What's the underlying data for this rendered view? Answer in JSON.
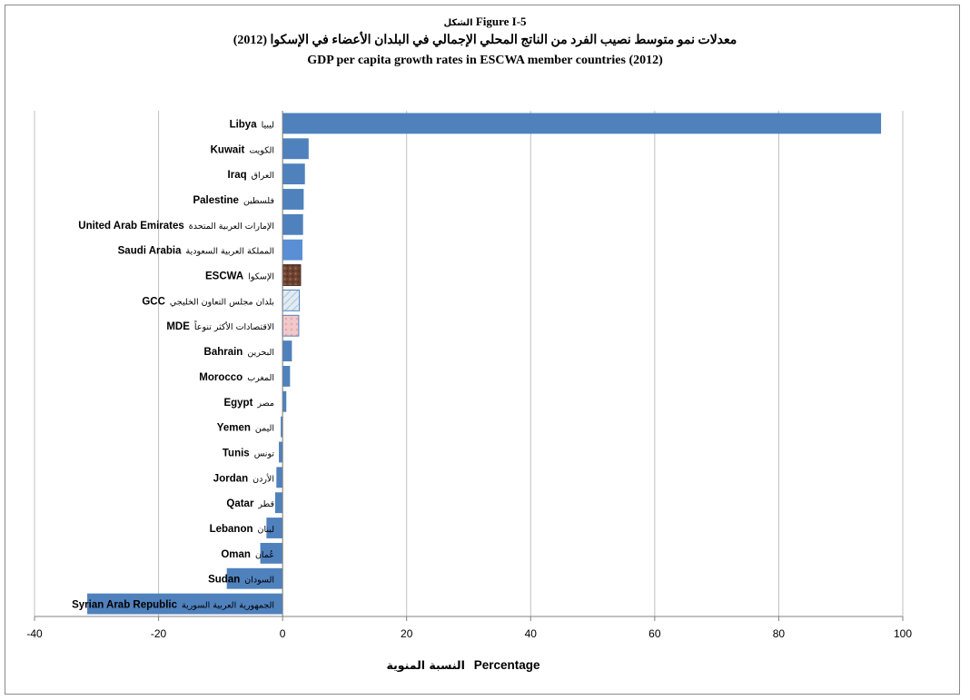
{
  "title": {
    "figure_label": "Figure I-5",
    "figure_label_ar": "الشكل",
    "title_ar": "معدلات نمو متوسط نصيب الفرد من الناتج المحلي الإجمالي في البلدان الأعضاء في الإسكوا (2012)",
    "title_en": "GDP per capita growth rates in ESCWA member countries (2012)"
  },
  "chart_data": {
    "type": "bar",
    "orientation": "horizontal",
    "title": "GDP per capita growth rates in ESCWA member countries (2012)",
    "xlabel": "Percentage",
    "xlabel_ar": "النسبة المنوية",
    "ylabel": "",
    "xlim": [
      -40,
      100
    ],
    "xticks": [
      -40,
      -20,
      0,
      20,
      40,
      60,
      80,
      100
    ],
    "grid": "vertical",
    "legend": "none",
    "categories": [
      {
        "en": "Libya",
        "ar": "ليبيا",
        "value": 96.5,
        "fill": "solid"
      },
      {
        "en": "Kuwait",
        "ar": "الكويت",
        "value": 4.2,
        "fill": "solid"
      },
      {
        "en": "Iraq",
        "ar": "العراق",
        "value": 3.6,
        "fill": "solid"
      },
      {
        "en": "Palestine",
        "ar": "فلسطين",
        "value": 3.4,
        "fill": "solid"
      },
      {
        "en": "United Arab Emirates",
        "ar": "الإمارات العربية المتحدة",
        "value": 3.3,
        "fill": "solid"
      },
      {
        "en": "Saudi Arabia",
        "ar": "المملكة العربية السعودية",
        "value": 3.2,
        "fill": "solid-light"
      },
      {
        "en": "ESCWA",
        "ar": "الإسكوا",
        "value": 2.9,
        "fill": "texture-brown"
      },
      {
        "en": "GCC",
        "ar": "بلدان مجلس التعاون الخليجي",
        "value": 2.7,
        "fill": "texture-blue"
      },
      {
        "en": "MDE",
        "ar": "الاقتصادات الأكثر تنوعاً",
        "value": 2.6,
        "fill": "texture-pink"
      },
      {
        "en": "Bahrain",
        "ar": "البحرين",
        "value": 1.5,
        "fill": "solid"
      },
      {
        "en": "Morocco",
        "ar": "المغرب",
        "value": 1.2,
        "fill": "solid"
      },
      {
        "en": "Egypt",
        "ar": "مصر",
        "value": 0.6,
        "fill": "solid"
      },
      {
        "en": "Yemen",
        "ar": "اليمن",
        "value": -0.3,
        "fill": "solid"
      },
      {
        "en": "Tunis",
        "ar": "تونس",
        "value": -0.6,
        "fill": "solid"
      },
      {
        "en": "Jordan",
        "ar": "الأردن",
        "value": -1.0,
        "fill": "solid"
      },
      {
        "en": "Qatar",
        "ar": "قطر",
        "value": -1.2,
        "fill": "solid"
      },
      {
        "en": "Lebanon",
        "ar": "لبنان",
        "value": -2.6,
        "fill": "solid"
      },
      {
        "en": "Oman",
        "ar": "عُمان",
        "value": -3.6,
        "fill": "solid"
      },
      {
        "en": "Sudan",
        "ar": "السودان",
        "value": -9.0,
        "fill": "solid"
      },
      {
        "en": "Syrian Arab Republic",
        "ar": "الجمهورية العربية السورية",
        "value": -31.5,
        "fill": "solid"
      }
    ]
  },
  "colors": {
    "bar": "#4f81bd",
    "bar_light": "#5a8fd6",
    "texture_brown": "#7a4a3a",
    "texture_blue": "#d4e3ee",
    "texture_pink": "#f0c4c6",
    "grid": "#c0c0c0",
    "axis": "#808080",
    "text": "#000000"
  }
}
